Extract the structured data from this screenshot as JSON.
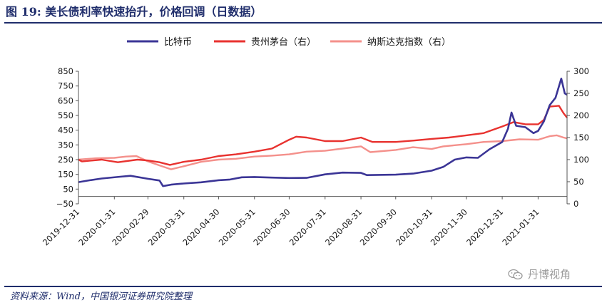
{
  "header": {
    "title": "图 19:  美长债利率快速抬升，价格回调（日数据）"
  },
  "footer": {
    "source": "资料来源：Wind，中国银河证券研究院整理"
  },
  "watermark": {
    "text": "丹博视角",
    "icon": "wechat-icon"
  },
  "chart_data": {
    "type": "line",
    "x_ticks": [
      "2019-12-31",
      "2020-01-31",
      "2020-02-29",
      "2020-03-31",
      "2020-04-30",
      "2020-05-31",
      "2020-06-30",
      "2020-07-31",
      "2020-08-31",
      "2020-09-30",
      "2020-10-31",
      "2020-11-30",
      "2020-12-31",
      "2021-01-31"
    ],
    "x_range": [
      "2019-12-31",
      "2021-02-25"
    ],
    "y_left": {
      "ticks": [
        "850",
        "750",
        "650",
        "550",
        "450",
        "350",
        "250",
        "150",
        "50",
        "−50"
      ],
      "range": [
        -50,
        850
      ]
    },
    "y_right": {
      "ticks": [
        "300",
        "250",
        "200",
        "150",
        "100",
        "50",
        "0"
      ],
      "range": [
        0,
        300
      ]
    },
    "legend_position": "top",
    "series": [
      {
        "name": "比特币",
        "axis": "left",
        "color": "#3b3596",
        "points": [
          [
            "2019-12-31",
            97
          ],
          [
            "2020-01-10",
            110
          ],
          [
            "2020-01-20",
            122
          ],
          [
            "2020-02-05",
            134
          ],
          [
            "2020-02-14",
            140
          ],
          [
            "2020-02-29",
            120
          ],
          [
            "2020-03-10",
            108
          ],
          [
            "2020-03-13",
            70
          ],
          [
            "2020-03-20",
            80
          ],
          [
            "2020-03-31",
            88
          ],
          [
            "2020-04-15",
            96
          ],
          [
            "2020-04-30",
            110
          ],
          [
            "2020-05-10",
            115
          ],
          [
            "2020-05-20",
            130
          ],
          [
            "2020-05-31",
            132
          ],
          [
            "2020-06-15",
            128
          ],
          [
            "2020-06-30",
            125
          ],
          [
            "2020-07-15",
            126
          ],
          [
            "2020-07-31",
            150
          ],
          [
            "2020-08-15",
            162
          ],
          [
            "2020-08-31",
            160
          ],
          [
            "2020-09-05",
            145
          ],
          [
            "2020-09-30",
            148
          ],
          [
            "2020-10-15",
            155
          ],
          [
            "2020-10-31",
            175
          ],
          [
            "2020-11-10",
            200
          ],
          [
            "2020-11-20",
            250
          ],
          [
            "2020-11-30",
            265
          ],
          [
            "2020-12-10",
            262
          ],
          [
            "2020-12-20",
            320
          ],
          [
            "2020-12-31",
            370
          ],
          [
            "2021-01-05",
            460
          ],
          [
            "2021-01-08",
            570
          ],
          [
            "2021-01-12",
            480
          ],
          [
            "2021-01-20",
            470
          ],
          [
            "2021-01-27",
            430
          ],
          [
            "2021-01-31",
            445
          ],
          [
            "2021-02-05",
            510
          ],
          [
            "2021-02-10",
            620
          ],
          [
            "2021-02-15",
            670
          ],
          [
            "2021-02-20",
            800
          ],
          [
            "2021-02-23",
            700
          ],
          [
            "2021-02-25",
            690
          ]
        ]
      },
      {
        "name": "贵州茅台（右）",
        "axis": "right",
        "color": "#e8322f",
        "points": [
          [
            "2019-12-31",
            100
          ],
          [
            "2020-01-03",
            96
          ],
          [
            "2020-01-20",
            100
          ],
          [
            "2020-02-03",
            94
          ],
          [
            "2020-02-20",
            100
          ],
          [
            "2020-02-29",
            98
          ],
          [
            "2020-03-10",
            94
          ],
          [
            "2020-03-19",
            88
          ],
          [
            "2020-03-31",
            95
          ],
          [
            "2020-04-15",
            100
          ],
          [
            "2020-04-30",
            108
          ],
          [
            "2020-05-15",
            112
          ],
          [
            "2020-05-31",
            118
          ],
          [
            "2020-06-15",
            125
          ],
          [
            "2020-06-30",
            145
          ],
          [
            "2020-07-06",
            152
          ],
          [
            "2020-07-15",
            150
          ],
          [
            "2020-07-31",
            142
          ],
          [
            "2020-08-15",
            142
          ],
          [
            "2020-08-31",
            150
          ],
          [
            "2020-09-10",
            140
          ],
          [
            "2020-09-30",
            140
          ],
          [
            "2020-10-15",
            143
          ],
          [
            "2020-10-31",
            147
          ],
          [
            "2020-11-15",
            150
          ],
          [
            "2020-11-30",
            155
          ],
          [
            "2020-12-15",
            160
          ],
          [
            "2020-12-31",
            175
          ],
          [
            "2021-01-10",
            185
          ],
          [
            "2021-01-20",
            180
          ],
          [
            "2021-01-31",
            180
          ],
          [
            "2021-02-05",
            190
          ],
          [
            "2021-02-10",
            220
          ],
          [
            "2021-02-18",
            222
          ],
          [
            "2021-02-22",
            205
          ],
          [
            "2021-02-25",
            195
          ]
        ]
      },
      {
        "name": "纳斯达克指数（右）",
        "axis": "right",
        "color": "#f4908b",
        "points": [
          [
            "2019-12-31",
            100
          ],
          [
            "2020-01-15",
            103
          ],
          [
            "2020-01-31",
            104
          ],
          [
            "2020-02-10",
            107
          ],
          [
            "2020-02-19",
            108
          ],
          [
            "2020-02-29",
            96
          ],
          [
            "2020-03-10",
            87
          ],
          [
            "2020-03-20",
            78
          ],
          [
            "2020-03-31",
            85
          ],
          [
            "2020-04-15",
            95
          ],
          [
            "2020-04-30",
            100
          ],
          [
            "2020-05-15",
            102
          ],
          [
            "2020-05-31",
            107
          ],
          [
            "2020-06-15",
            109
          ],
          [
            "2020-06-30",
            112
          ],
          [
            "2020-07-15",
            118
          ],
          [
            "2020-07-31",
            120
          ],
          [
            "2020-08-15",
            125
          ],
          [
            "2020-08-31",
            130
          ],
          [
            "2020-09-08",
            117
          ],
          [
            "2020-09-30",
            122
          ],
          [
            "2020-10-15",
            128
          ],
          [
            "2020-10-31",
            124
          ],
          [
            "2020-11-10",
            130
          ],
          [
            "2020-11-30",
            135
          ],
          [
            "2020-12-15",
            140
          ],
          [
            "2020-12-31",
            142
          ],
          [
            "2021-01-15",
            146
          ],
          [
            "2021-01-31",
            145
          ],
          [
            "2021-02-10",
            153
          ],
          [
            "2021-02-16",
            155
          ],
          [
            "2021-02-22",
            150
          ],
          [
            "2021-02-25",
            148
          ]
        ]
      }
    ]
  }
}
